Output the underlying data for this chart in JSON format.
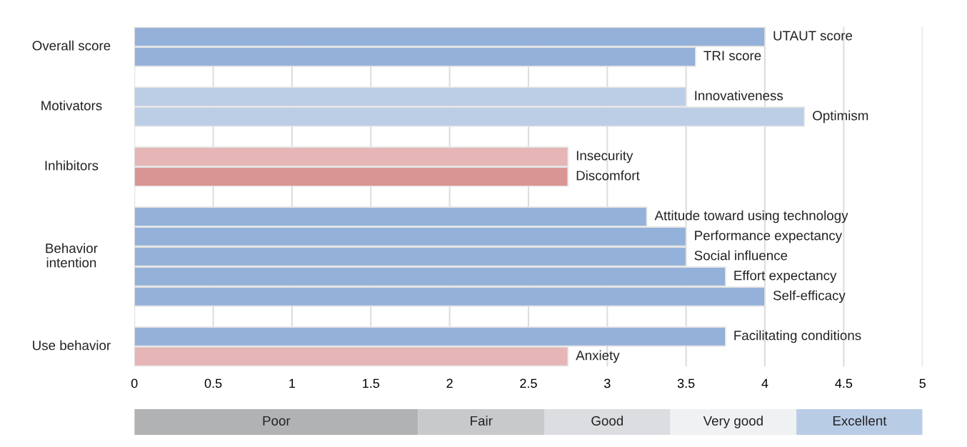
{
  "chart_data": [
    {
      "type": "bar",
      "orientation": "horizontal",
      "categories": [
        "UTAUT score",
        "TRI score",
        null,
        "Innovativeness",
        "Optimism",
        null,
        "Insecurity",
        "Discomfort",
        null,
        "Attitude toward using technology",
        "Performance expectancy",
        "Social influence",
        "Effort expectancy",
        "Self-efficacy",
        null,
        "Facilitating conditions",
        "Anxiety"
      ],
      "series": [
        {
          "name": "Overall score",
          "colors": [
            "#94b1d9",
            "#94b1d9",
            null,
            null,
            null,
            null,
            null,
            null,
            null,
            null,
            null,
            null,
            null,
            null,
            null,
            null,
            null
          ],
          "values": [
            4,
            3.56,
            null,
            null,
            null,
            null,
            null,
            null,
            null,
            null,
            null,
            null,
            null,
            null,
            null,
            null,
            null
          ]
        },
        {
          "name": "Motivators",
          "colors": [
            null,
            null,
            null,
            "#bccde6",
            "#bccde6",
            null,
            null,
            null,
            null,
            null,
            null,
            null,
            null,
            null,
            null,
            null,
            null
          ],
          "values": [
            null,
            null,
            null,
            3.5,
            4.25,
            null,
            null,
            null,
            null,
            null,
            null,
            null,
            null,
            null,
            null,
            null,
            null
          ]
        },
        {
          "name": "Inhibitors",
          "colors": [
            null,
            null,
            null,
            null,
            null,
            null,
            "#e6b5b5",
            "#d99494",
            null,
            null,
            null,
            null,
            null,
            null,
            null,
            null,
            null
          ],
          "values": [
            null,
            null,
            null,
            null,
            null,
            null,
            2.75,
            2.75,
            null,
            null,
            null,
            null,
            null,
            null,
            null,
            null,
            null
          ]
        },
        {
          "name": "Behavior\nintention",
          "colors": [
            null,
            null,
            null,
            null,
            null,
            null,
            null,
            null,
            null,
            "#94b1d9",
            "#94b1d9",
            "#94b1d9",
            "#94b1d9",
            "#94b1d9",
            null,
            null,
            null
          ],
          "values": [
            null,
            null,
            null,
            null,
            null,
            null,
            null,
            null,
            null,
            3.25,
            3.5,
            3.5,
            3.75,
            4,
            null,
            null,
            null
          ]
        },
        {
          "name": "Use behavior",
          "colors": [
            null,
            null,
            null,
            null,
            null,
            null,
            null,
            null,
            null,
            null,
            null,
            null,
            null,
            null,
            null,
            "#94b1d9",
            "#e6b5b5"
          ],
          "values": [
            null,
            null,
            null,
            null,
            null,
            null,
            null,
            null,
            null,
            null,
            null,
            null,
            null,
            null,
            null,
            3.75,
            2.75
          ]
        }
      ],
      "xlim": [
        0,
        5
      ],
      "xticks": [
        0,
        0.5,
        1,
        1.5,
        2,
        2.5,
        3,
        3.5,
        4,
        4.5,
        5
      ],
      "grid": "x",
      "legend": false
    },
    {
      "type": "bar",
      "orientation": "horizontal",
      "stacked": true,
      "categories": [
        null
      ],
      "series": [
        {
          "name": "Poor",
          "color": "#b1b2b4",
          "values": [
            1.8
          ]
        },
        {
          "name": "Fair",
          "color": "#c8c9cb",
          "values": [
            0.8
          ]
        },
        {
          "name": "Good",
          "color": "#dcdde0",
          "values": [
            0.8
          ]
        },
        {
          "name": "Very good",
          "color": "#f0f1f3",
          "values": [
            0.8
          ]
        },
        {
          "name": "Excellent",
          "color": "#b9cce6",
          "values": [
            0.8
          ]
        }
      ],
      "xlim": [
        0,
        5
      ],
      "xticks": [
        0,
        0.5,
        1,
        1.5,
        2,
        2.5,
        3,
        3.5,
        4,
        4.5,
        5
      ],
      "tick_labels": false,
      "legend": false
    }
  ]
}
